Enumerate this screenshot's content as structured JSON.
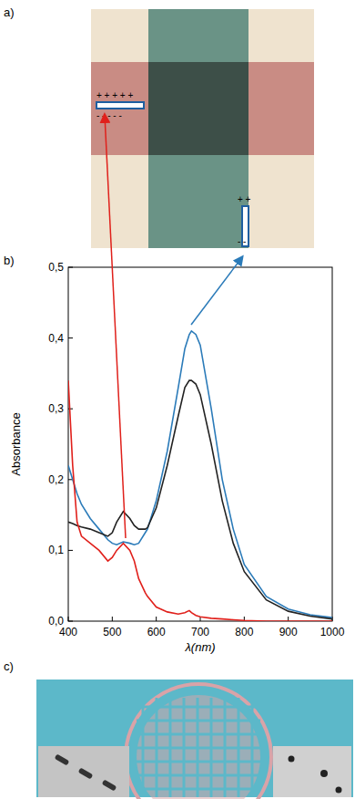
{
  "figure": {
    "panel_labels": [
      "a)",
      "b)",
      "c)"
    ],
    "charges": {
      "left_top": "+ + + + +",
      "left_bottom": "- - - - -",
      "right_top": "+ +",
      "right_bottom": "- -"
    }
  },
  "chart_data": {
    "type": "line",
    "x_label": "λ(nm)",
    "y_label": "Absorbance",
    "x": [
      400,
      410,
      420,
      430,
      450,
      470,
      490,
      500,
      510,
      525,
      540,
      550,
      560,
      575,
      580,
      600,
      625,
      650,
      665,
      675,
      680,
      690,
      700,
      725,
      750,
      775,
      800,
      850,
      900,
      950,
      1000
    ],
    "series": [
      {
        "color": "#2b7bb9",
        "values": [
          0.22,
          0.2,
          0.18,
          0.165,
          0.145,
          0.13,
          0.115,
          0.11,
          0.108,
          0.112,
          0.11,
          0.108,
          0.11,
          0.125,
          0.13,
          0.17,
          0.24,
          0.33,
          0.385,
          0.405,
          0.41,
          0.405,
          0.39,
          0.3,
          0.2,
          0.13,
          0.08,
          0.035,
          0.017,
          0.009,
          0.005
        ]
      },
      {
        "color": "#222222",
        "values": [
          0.14,
          0.138,
          0.135,
          0.133,
          0.13,
          0.125,
          0.12,
          0.125,
          0.14,
          0.155,
          0.145,
          0.135,
          0.13,
          0.13,
          0.132,
          0.16,
          0.22,
          0.29,
          0.33,
          0.34,
          0.34,
          0.335,
          0.32,
          0.25,
          0.17,
          0.11,
          0.07,
          0.03,
          0.014,
          0.007,
          0.003
        ]
      },
      {
        "color": "#e0201b",
        "values": [
          0.34,
          0.22,
          0.14,
          0.12,
          0.11,
          0.1,
          0.085,
          0.09,
          0.1,
          0.11,
          0.1,
          0.085,
          0.06,
          0.04,
          0.035,
          0.02,
          0.013,
          0.01,
          0.012,
          0.015,
          0.012,
          0.008,
          0.006,
          0.004,
          0.003,
          0.002,
          0.001,
          0,
          0,
          0,
          0
        ]
      }
    ],
    "xlim": [
      400,
      1000
    ],
    "xticks": [
      400,
      500,
      600,
      700,
      800,
      900,
      1000
    ],
    "ylim": [
      0,
      0.5
    ],
    "yticks": [
      {
        "value": 0,
        "label": "0,0"
      },
      {
        "value": 0.1,
        "label": "0,1"
      },
      {
        "value": 0.2,
        "label": "0,2"
      },
      {
        "value": 0.3,
        "label": "0,3"
      },
      {
        "value": 0.4,
        "label": "0,4"
      },
      {
        "value": 0.5,
        "label": "0,5"
      }
    ],
    "grid": false
  }
}
